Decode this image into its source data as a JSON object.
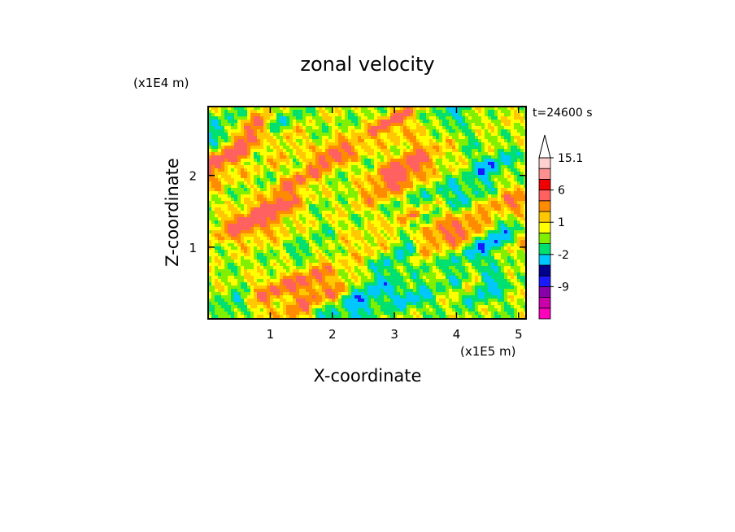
{
  "chart_data": {
    "type": "heatmap",
    "title": "zonal velocity",
    "xlabel": "X-coordinate",
    "ylabel": "Z-coordinate",
    "x_unit": "(x1E5 m)",
    "y_unit": "(x1E4 m)",
    "time_label": "t=24600 s",
    "x_range": [
      0,
      5.12
    ],
    "y_range": [
      0,
      2.96
    ],
    "x_ticks": [
      1,
      2,
      3,
      4,
      5
    ],
    "x_tick_labels": [
      "1",
      "2",
      "3",
      "4",
      "5"
    ],
    "y_ticks": [
      1,
      2
    ],
    "y_tick_labels": [
      "1",
      "2"
    ],
    "colorbar": {
      "levels": [
        -15,
        -12,
        -9,
        -6,
        -4,
        -2,
        -1,
        0,
        1,
        2,
        3,
        6,
        9,
        12,
        15.1
      ],
      "tick_labels": [
        "15.1",
        "6",
        "1",
        "-2",
        "-9"
      ],
      "tick_values": [
        15.1,
        6,
        1,
        -2,
        -9
      ],
      "colors": [
        "#ff00bb",
        "#cc00aa",
        "#8800aa",
        "#1a1aff",
        "#00008c",
        "#00c8ff",
        "#00e070",
        "#80f000",
        "#ffff00",
        "#ffc800",
        "#ff8c00",
        "#ff6060",
        "#f00000",
        "#ff9090",
        "#ffd0d0"
      ],
      "extend": "max"
    }
  }
}
